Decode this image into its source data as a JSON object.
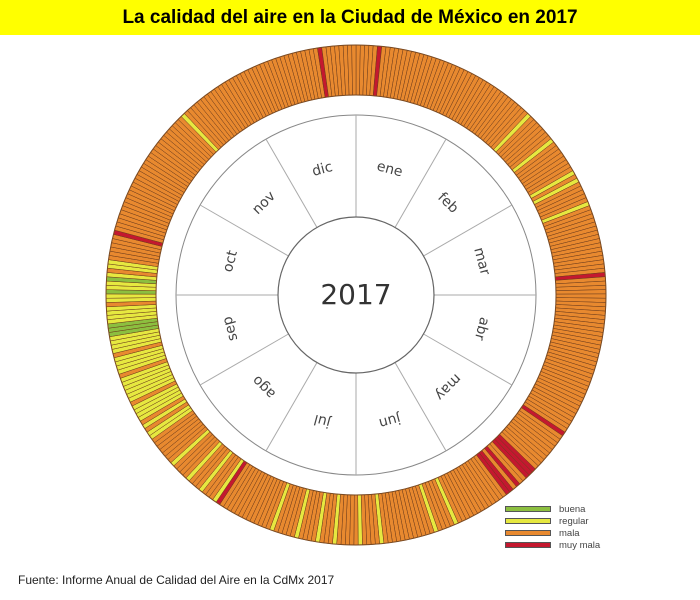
{
  "title": "La calidad del aire en la Ciudad de México en 2017",
  "source": "Fuente: Informe Anual de Calidad del Aire en la CdMx 2017",
  "chart_data": {
    "type": "radial-calendar",
    "center_label": "2017",
    "year": 2017,
    "months": [
      "ene",
      "feb",
      "mar",
      "abr",
      "may",
      "jun",
      "jul",
      "ago",
      "sep",
      "oct",
      "nov",
      "dic"
    ],
    "month_days": [
      31,
      28,
      31,
      30,
      31,
      30,
      31,
      31,
      30,
      31,
      30,
      31
    ],
    "categories": [
      {
        "key": "b",
        "label": "buena",
        "color": "#8cbf3f"
      },
      {
        "key": "r",
        "label": "regular",
        "color": "#e6e840"
      },
      {
        "key": "m",
        "label": "mala",
        "color": "#e8892f"
      },
      {
        "key": "x",
        "label": "muy mala",
        "color": "#c4182f"
      }
    ],
    "daily_quality": [
      "mmmmmxmmmmmmmmmmmmmmmmmmmmmmmmm",
      "mmmmmmmmmmmmmrmmmmmmmrmmmmmm",
      "mmrmrmmmmmrmmmmmmmmmmmmmmmmxmmm",
      "mmmmmmmmmmmmmmmmmmmmmmmmmmmmmm",
      "mmmmmxmmmmmmmmmmxxxmmxmxxmmmmmm",
      "mmmmmmmrmmmmrmmmmmmmmmmmmrmmmm",
      "rmmmmmrmmmrmmmmrmmmmmrmmmmmmmmm",
      "mmmmxrmmmrmmmrmmmmrmmmmmmmrrmrm",
      "rrrrmrrrrrrmrrrrmrrrrbbbrrrrmr",
      "rbrrbrmrrmmmmmmxmmmmmmmmmmmmmmm",
      "mmmmmmmmmmmmmmmmrmmmmmmmmmmmmm",
      "mmmmmmmmmmmmmmmmmmmmmmxmmmmmmmm"
    ],
    "legend_position": "bottom-right"
  }
}
